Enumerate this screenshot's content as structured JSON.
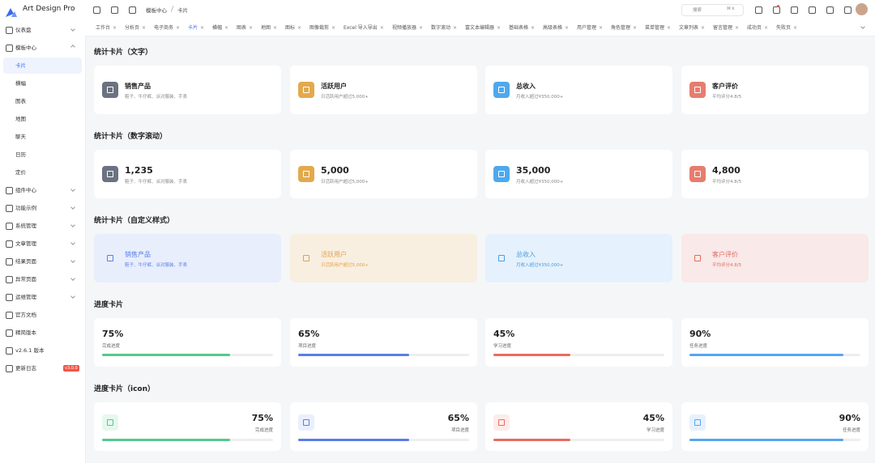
{
  "sidebar": {
    "logo": "Art Design Pro",
    "menu": [
      {
        "label": "仪表盘"
      },
      {
        "label": "模板中心",
        "children": [
          "卡片",
          "横幅",
          "图表",
          "地图",
          "聊天",
          "日历",
          "定价"
        ]
      },
      {
        "label": "组件中心"
      },
      {
        "label": "功能示例"
      },
      {
        "label": "系统管理"
      },
      {
        "label": "文章管理"
      },
      {
        "label": "结果页面"
      },
      {
        "label": "异常页面"
      },
      {
        "label": "运维管理"
      },
      {
        "label": "官方文档"
      },
      {
        "label": "精简版本"
      },
      {
        "label": "v2.6.1 版本"
      },
      {
        "label": "更新日志",
        "badge": "v3.0.0"
      }
    ]
  },
  "topbar": {
    "breadcrumb": [
      "模板中心",
      "卡片"
    ],
    "search": "搜索",
    "shortcut": "⌘ k"
  },
  "tabs": [
    "工作台",
    "分析页",
    "电子商务",
    "卡片",
    "横幅",
    "图表",
    "地图",
    "图标",
    "图像裁剪",
    "Excel 导入导出",
    "视频播放器",
    "数字滚动",
    "富文本编辑器",
    "基础表格",
    "高级表格",
    "用户管理",
    "角色管理",
    "菜单管理",
    "文章列表",
    "留言管理",
    "成功页",
    "失败页"
  ],
  "sections": [
    {
      "title": "统计卡片（文字）",
      "cards": [
        {
          "title": "销售产品",
          "desc": "鞋子、牛仔裤、派对服装、手表"
        },
        {
          "title": "活跃用户",
          "desc": "日活跃用户超过5,000+"
        },
        {
          "title": "总收入",
          "desc": "月收入超过¥350,000+"
        },
        {
          "title": "客户评价",
          "desc": "平均评分4.8/5"
        }
      ]
    },
    {
      "title": "统计卡片（数字滚动）",
      "cards": [
        {
          "title": "1,235",
          "desc": "鞋子、牛仔裤、派对服装、手表"
        },
        {
          "title": "5,000",
          "desc": "日活跃用户超过5,000+"
        },
        {
          "title": "35,000",
          "desc": "月收入超过¥350,000+"
        },
        {
          "title": "4,800",
          "desc": "平均评分4.8/5"
        }
      ]
    },
    {
      "title": "统计卡片（自定义样式）",
      "cards": [
        {
          "title": "销售产品",
          "desc": "鞋子、牛仔裤、派对服装、手表"
        },
        {
          "title": "活跃用户",
          "desc": "日活跃用户超过5,000+"
        },
        {
          "title": "总收入",
          "desc": "月收入超过¥350,000+"
        },
        {
          "title": "客户评价",
          "desc": "平均评分4.8/5"
        }
      ]
    },
    {
      "title": "进度卡片",
      "cards": [
        {
          "value": 75,
          "label": "75%",
          "desc": "完成进度"
        },
        {
          "value": 65,
          "label": "65%",
          "desc": "项目进度"
        },
        {
          "value": 45,
          "label": "45%",
          "desc": "学习进度"
        },
        {
          "value": 90,
          "label": "90%",
          "desc": "任务进度"
        }
      ]
    },
    {
      "title": "进度卡片（icon）",
      "cards": [
        {
          "value": 75,
          "label": "75%",
          "desc": "完成进度"
        },
        {
          "value": 65,
          "label": "65%",
          "desc": "项目进度"
        },
        {
          "value": 45,
          "label": "45%",
          "desc": "学习进度"
        },
        {
          "value": 90,
          "label": "90%",
          "desc": "任务进度"
        }
      ]
    }
  ]
}
